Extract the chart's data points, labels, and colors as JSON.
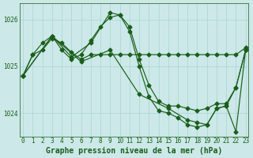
{
  "title": "Graphe pression niveau de la mer (hPa)",
  "background_color": "#cce8e8",
  "grid_color": "#aad4d4",
  "line_color": "#1a5e1a",
  "series": [
    {
      "x": [
        0,
        1,
        2,
        3,
        4,
        5,
        6,
        7,
        8,
        9,
        10,
        11,
        12,
        13,
        14,
        15,
        16,
        17,
        18,
        19,
        20,
        21,
        22,
        23
      ],
      "y": [
        1024.8,
        1025.25,
        1025.35,
        1025.6,
        1025.5,
        1025.3,
        1025.15,
        1025.25,
        1025.25,
        1025.25,
        1025.25,
        1025.25,
        1025.25,
        1025.25,
        1025.25,
        1025.25,
        1025.25,
        1025.25,
        1025.25,
        1025.25,
        1025.25,
        1025.25,
        1025.25,
        1025.4
      ]
    },
    {
      "x": [
        0,
        1,
        2,
        3,
        4,
        5,
        6,
        7,
        8,
        9,
        10,
        11,
        12,
        13,
        14,
        15,
        16,
        17,
        18,
        19,
        20,
        21,
        22,
        23
      ],
      "y": [
        1024.8,
        1025.25,
        1025.5,
        1025.65,
        1025.35,
        1025.15,
        1025.25,
        1025.55,
        1025.85,
        1026.05,
        1026.1,
        1025.85,
        1025.15,
        1024.6,
        1024.25,
        1024.15,
        1024.15,
        1024.1,
        1024.05,
        1024.1,
        1024.2,
        1024.2,
        1024.55,
        1025.35
      ]
    },
    {
      "x": [
        0,
        3,
        6,
        9,
        12,
        15,
        17,
        18,
        19,
        20,
        21,
        22,
        23
      ],
      "y": [
        1024.8,
        1025.65,
        1025.1,
        1025.35,
        1024.4,
        1024.1,
        1023.85,
        1023.8,
        1023.75,
        1024.1,
        1024.15,
        1024.55,
        1025.35
      ]
    },
    {
      "x": [
        0,
        3,
        5,
        7,
        9,
        10,
        11,
        12,
        13,
        14,
        15,
        16,
        17,
        18,
        19,
        20,
        21,
        22,
        23
      ],
      "y": [
        1024.8,
        1025.65,
        1025.2,
        1025.5,
        1026.15,
        1026.1,
        1025.75,
        1025.0,
        1024.35,
        1024.05,
        1024.0,
        1023.9,
        1023.75,
        1023.7,
        1023.75,
        1024.1,
        1024.15,
        1023.6,
        1025.35
      ]
    }
  ],
  "ylim": [
    1023.5,
    1026.35
  ],
  "yticks": [
    1024,
    1025,
    1026
  ],
  "xlim": [
    -0.3,
    23.3
  ],
  "xticks": [
    0,
    1,
    2,
    3,
    4,
    5,
    6,
    7,
    8,
    9,
    10,
    11,
    12,
    13,
    14,
    15,
    16,
    17,
    18,
    19,
    20,
    21,
    22,
    23
  ],
  "marker": "D",
  "markersize": 2.5,
  "linewidth": 0.85,
  "title_fontsize": 7.0,
  "tick_fontsize": 5.5
}
